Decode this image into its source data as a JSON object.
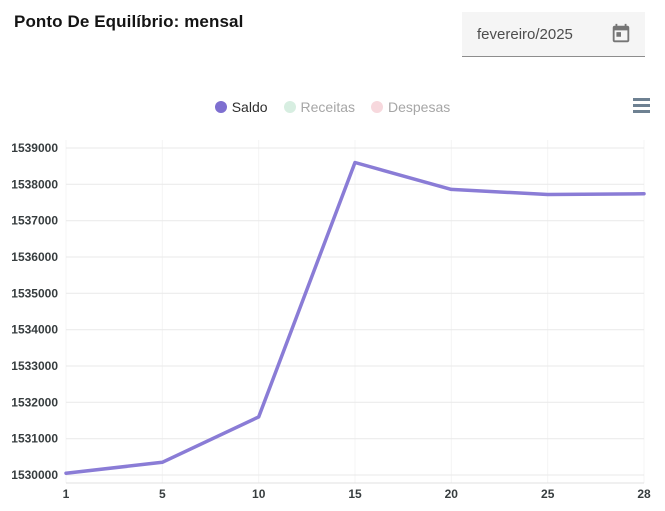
{
  "header": {
    "title": "Ponto De Equilíbrio: mensal",
    "date_picker": {
      "value": "fevereiro/2025",
      "icon": "calendar-icon"
    }
  },
  "toolbar": {
    "menu_icon": "hamburger-menu-icon"
  },
  "legend": {
    "position": "top",
    "items": [
      {
        "label": "Saldo",
        "color": "#7e6fd0",
        "active": true
      },
      {
        "label": "Receitas",
        "color": "#d7eee1",
        "active": false
      },
      {
        "label": "Despesas",
        "color": "#f7d8dd",
        "active": false
      }
    ]
  },
  "chart_data": {
    "type": "line",
    "title": "Ponto De Equilíbrio: mensal",
    "xlabel": "",
    "ylabel": "",
    "x": [
      1,
      5,
      10,
      15,
      20,
      25,
      28
    ],
    "x_even_spacing": true,
    "series": [
      {
        "name": "Saldo",
        "color": "#8a7cd6",
        "values": [
          1530050,
          1530350,
          1531600,
          1538600,
          1537860,
          1537720,
          1537740
        ]
      }
    ],
    "hidden_series": [
      "Receitas",
      "Despesas"
    ],
    "yticks": [
      1530000,
      1531000,
      1532000,
      1533000,
      1534000,
      1535000,
      1536000,
      1537000,
      1538000,
      1539000
    ],
    "ylim": [
      1529780,
      1539220
    ],
    "grid": true,
    "legend_position": "top"
  },
  "colors": {
    "accent_saldo": "#7e6fd0",
    "line_stroke": "#8a7cd6",
    "grid_horizontal": "#e9e9e9",
    "grid_vertical": "#f4f4f4",
    "axis_border": "#e0e0e0",
    "axis_label": "#373d3f",
    "menu_icon": "#6e8192",
    "datepicker_bg": "#f5f5f5"
  }
}
